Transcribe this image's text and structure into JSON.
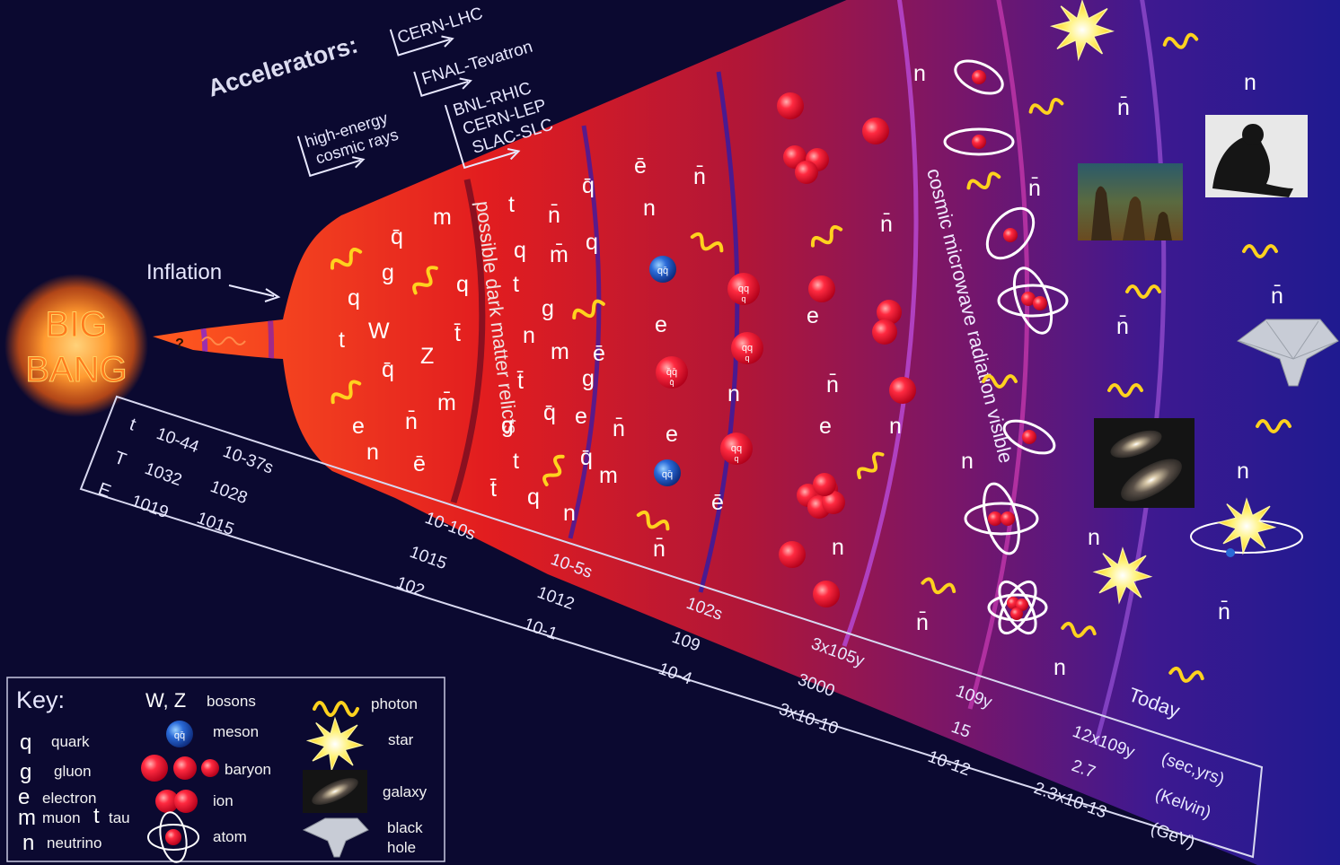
{
  "accelerators": {
    "title": "Accelerators:",
    "items": [
      "CERN-LHC",
      "FNAL-Tevatron",
      "BNL-RHIC",
      "CERN-LEP",
      "SLAC-SLC"
    ],
    "cosmic_rays_1": "high-energy",
    "cosmic_rays_2": "cosmic rays"
  },
  "inflation_label": "Inflation",
  "big_bang": {
    "line1": "BIG",
    "line2": "BANG",
    "question": "?"
  },
  "era_labels": {
    "dark_matter": "possible dark matter relicts",
    "cmb": "cosmic microwave radiation visible"
  },
  "timeline": {
    "row_labels": [
      "t",
      "T",
      "E"
    ],
    "col1": [
      "10-44",
      "1032",
      "1019"
    ],
    "col2": [
      "10-37s",
      "1028",
      "1015"
    ],
    "ticks": [
      [
        "10-10s",
        "1015",
        "102"
      ],
      [
        "10-5s",
        "1012",
        "10-1"
      ],
      [
        "102s",
        "109",
        "10-4"
      ],
      [
        "3x105y",
        "3000",
        "3x10-10"
      ],
      [
        "109y",
        "15",
        "10-12"
      ],
      [
        "Today",
        "12x109y",
        "2.7",
        "2.3x10-13"
      ]
    ],
    "units": [
      "(sec,yrs)",
      "(Kelvin)",
      "(GeV)"
    ]
  },
  "particles": {
    "q": "q",
    "qbar": "q̄",
    "g": "g",
    "t": "t",
    "tbar": "t̄",
    "W": "W",
    "Z": "Z",
    "e": "e",
    "ebar": "ē",
    "m": "m",
    "mbar": "m̄",
    "n": "n",
    "nbar": "n̄",
    "meson_text": "qq̄",
    "baryon_text": "qq\nq"
  },
  "key": {
    "title": "Key:",
    "col1": [
      {
        "sym": "q",
        "label": "quark"
      },
      {
        "sym": "g",
        "label": "gluon"
      },
      {
        "sym": "e",
        "label": "electron"
      },
      {
        "sym": "m",
        "label": "muon"
      },
      {
        "sym": "t",
        "label": "tau"
      },
      {
        "sym": "n",
        "label": "neutrino"
      }
    ],
    "col2": [
      {
        "sym": "W, Z",
        "label": "bosons"
      },
      {
        "sym": "meson-icon",
        "label": "meson"
      },
      {
        "sym": "baryon-icon",
        "label": "baryon"
      },
      {
        "sym": "ion-icon",
        "label": "ion"
      },
      {
        "sym": "atom-icon",
        "label": "atom"
      }
    ],
    "col3": [
      {
        "sym": "photon-icon",
        "label": "photon"
      },
      {
        "sym": "star-icon",
        "label": "star"
      },
      {
        "sym": "galaxy-icon",
        "label": "galaxy"
      },
      {
        "sym": "black-hole-icon",
        "label": "black hole"
      }
    ]
  },
  "colors": {
    "background": "#0b0930",
    "photon": "#ffd21e",
    "ion": "#ff1f3a",
    "star": "#fff27a",
    "arc": "#9a2fb0"
  }
}
